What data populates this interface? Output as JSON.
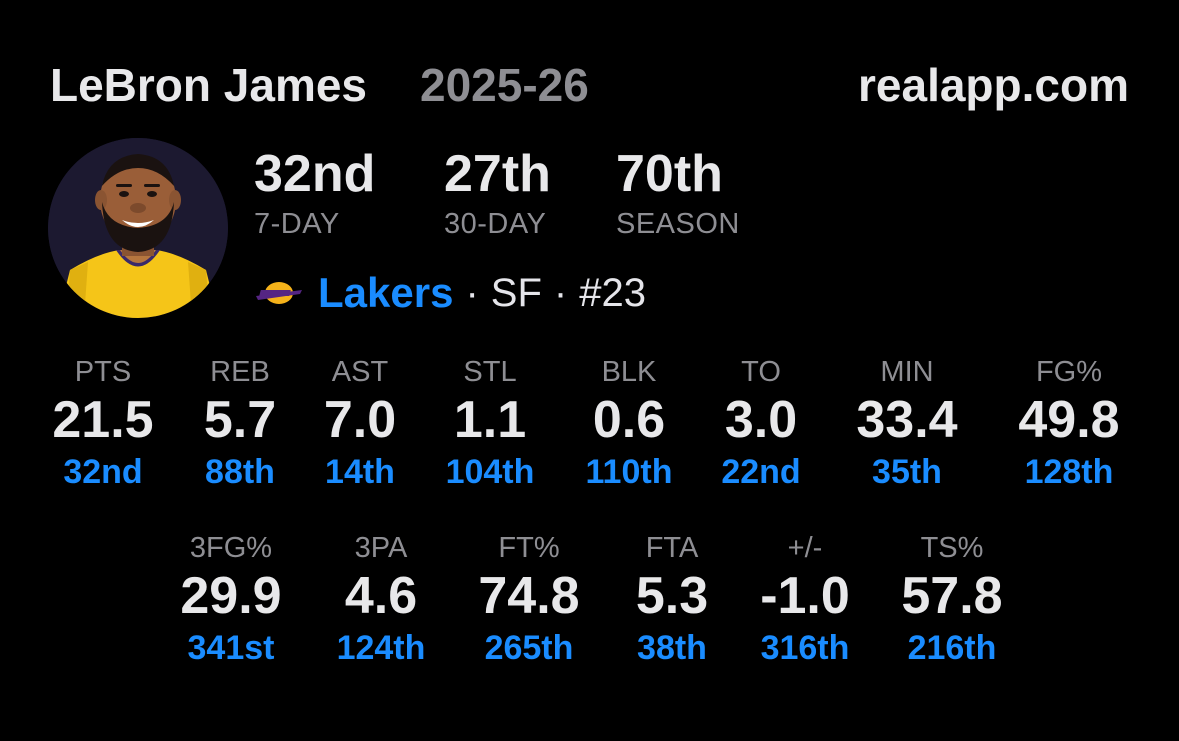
{
  "header": {
    "player_name": "LeBron James",
    "season": "2025-26",
    "site": "realapp.com"
  },
  "ranks": [
    {
      "value": "32nd",
      "label": "7-DAY"
    },
    {
      "value": "27th",
      "label": "30-DAY"
    },
    {
      "value": "70th",
      "label": "SEASON"
    }
  ],
  "team": {
    "name": "Lakers",
    "position": "SF",
    "number": "#23",
    "separator": "·"
  },
  "stats_row1": [
    {
      "label": "PTS",
      "value": "21.5",
      "rank": "32nd"
    },
    {
      "label": "REB",
      "value": "5.7",
      "rank": "88th"
    },
    {
      "label": "AST",
      "value": "7.0",
      "rank": "14th"
    },
    {
      "label": "STL",
      "value": "1.1",
      "rank": "104th"
    },
    {
      "label": "BLK",
      "value": "0.6",
      "rank": "110th"
    },
    {
      "label": "TO",
      "value": "3.0",
      "rank": "22nd"
    },
    {
      "label": "MIN",
      "value": "33.4",
      "rank": "35th"
    },
    {
      "label": "FG%",
      "value": "49.8",
      "rank": "128th"
    }
  ],
  "stats_row2": [
    {
      "label": "3FG%",
      "value": "29.9",
      "rank": "341st"
    },
    {
      "label": "3PA",
      "value": "4.6",
      "rank": "124th"
    },
    {
      "label": "FT%",
      "value": "74.8",
      "rank": "265th"
    },
    {
      "label": "FTA",
      "value": "5.3",
      "rank": "38th"
    },
    {
      "label": "+/-",
      "value": "-1.0",
      "rank": "316th"
    },
    {
      "label": "TS%",
      "value": "57.8",
      "rank": "216th"
    }
  ],
  "colors": {
    "background": "#000000",
    "primary_text": "#e8e8ea",
    "secondary_text": "#8e8e93",
    "accent": "#1a8cff",
    "jersey": "#f5c518"
  },
  "icons": {
    "avatar": "player-headshot",
    "team_logo": "lakers-logo"
  }
}
